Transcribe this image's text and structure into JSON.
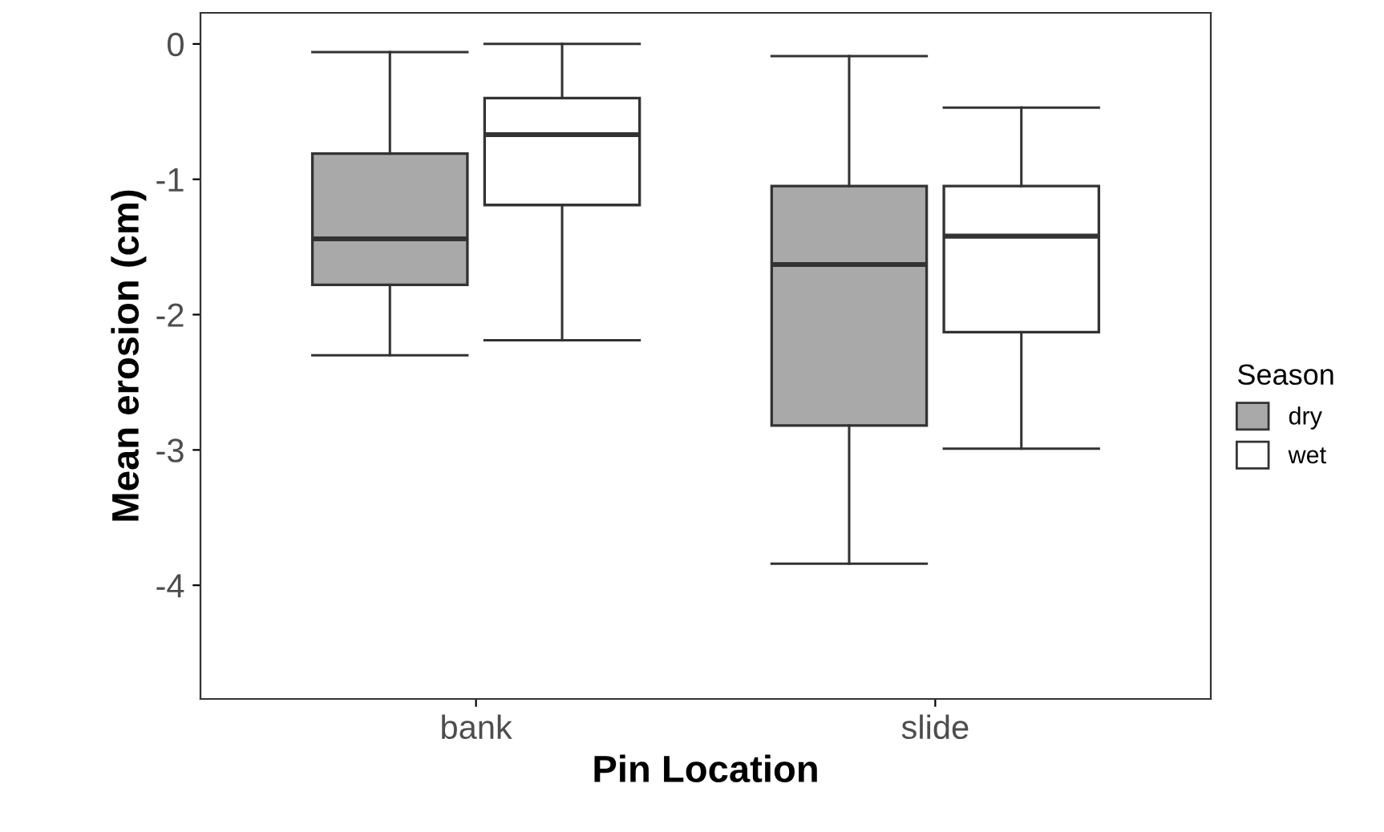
{
  "chart_data": {
    "type": "box",
    "xlabel": "Pin Location",
    "ylabel": "Mean erosion (cm)",
    "legend_title": "Season",
    "categories": [
      "bank",
      "slide"
    ],
    "series": [
      {
        "name": "dry",
        "color": "#a9a9a9",
        "boxes": [
          {
            "low": -2.3,
            "q1": -1.78,
            "median": -1.44,
            "q3": -0.81,
            "high": -0.06
          },
          {
            "low": -3.84,
            "q1": -2.82,
            "median": -1.63,
            "q3": -1.05,
            "high": -0.09
          }
        ]
      },
      {
        "name": "wet",
        "color": "#ffffff",
        "boxes": [
          {
            "low": -2.19,
            "q1": -1.19,
            "median": -0.67,
            "q3": -0.4,
            "high": 0.0
          },
          {
            "low": -2.99,
            "q1": -2.13,
            "median": -1.42,
            "q3": -1.05,
            "high": -0.47
          }
        ]
      }
    ],
    "ylim": [
      -4.84,
      0.23
    ],
    "yticks": [
      0,
      -1,
      -2,
      -3,
      -4
    ],
    "grid": false,
    "legend": "right"
  }
}
